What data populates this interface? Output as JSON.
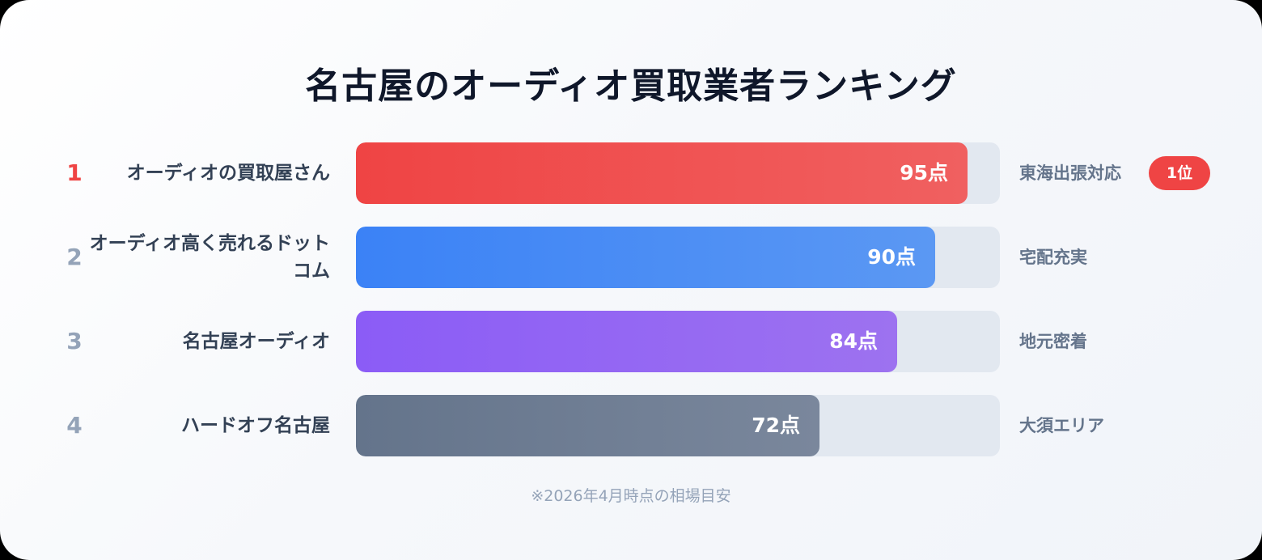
{
  "chart_data": {
    "type": "bar",
    "orientation": "horizontal",
    "title": "名古屋のオーディオ買取業者ランキング",
    "xlim": [
      0,
      100
    ],
    "grid": false,
    "categories": [
      "オーディオの買取屋さん",
      "オーディオ高く売れるドットコム",
      "名古屋オーディオ",
      "ハードオフ名古屋"
    ],
    "values": [
      95,
      90,
      84,
      72
    ],
    "ranks": [
      "1",
      "2",
      "3",
      "4"
    ],
    "value_labels": [
      "95点",
      "90点",
      "84点",
      "72点"
    ],
    "tags": [
      "東海出張対応",
      "宅配充実",
      "地元密着",
      "大須エリア"
    ],
    "badge": "1位",
    "footnote": "※2026年4月時点の相場目安",
    "colors": [
      [
        "#ef4444",
        "#f06060"
      ],
      [
        "#3b82f6",
        "#5b98f3"
      ],
      [
        "#8b5cf6",
        "#9d72f0"
      ],
      [
        "#64748b",
        "#7a879c"
      ]
    ]
  }
}
